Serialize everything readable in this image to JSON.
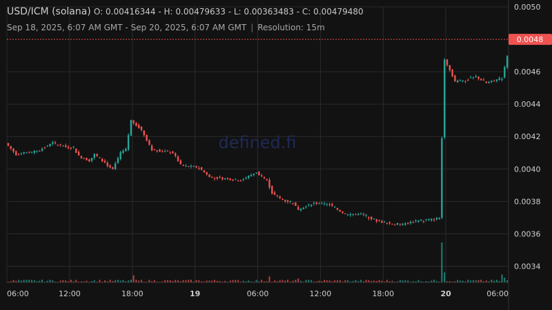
{
  "header": {
    "pair": "USD/ICM (solana)",
    "ohlc_text": "O: 0.00416344 - H: 0.00479633 - L: 0.00363483 - C: 0.00479480",
    "range_text": "Sep 18, 2025, 6:07 AM GMT - Sep 20, 2025, 6:07 AM GMT",
    "separator": "|",
    "resolution_text": "Resolution: 15m"
  },
  "watermark": "defined.fi",
  "colors": {
    "background": "#121212",
    "grid": "#2b2b2b",
    "up": "#26a69a",
    "down": "#ef5350",
    "price_line": "#ef5350",
    "axis_text": "#cfcfcf"
  },
  "chart_data": {
    "type": "candlestick",
    "resolution": "15m",
    "y_axis": {
      "min": 0.0033,
      "max": 0.005,
      "ticks": [
        0.0034,
        0.0036,
        0.0038,
        0.004,
        0.0042,
        0.0044,
        0.0046,
        0.005
      ],
      "tick_labels": [
        "0.0034",
        "0.0036",
        "0.0038",
        "0.0040",
        "0.0042",
        "0.0044",
        "0.0046",
        "0.0050"
      ]
    },
    "x_axis": {
      "start_hour": 6,
      "end_hour": 54,
      "ticks": [
        {
          "hour": 6,
          "label": "06:00",
          "bold": false
        },
        {
          "hour": 12,
          "label": "12:00",
          "bold": false
        },
        {
          "hour": 18,
          "label": "18:00",
          "bold": false
        },
        {
          "hour": 24,
          "label": "19",
          "bold": true
        },
        {
          "hour": 30,
          "label": "06:00",
          "bold": false
        },
        {
          "hour": 36,
          "label": "12:00",
          "bold": false
        },
        {
          "hour": 42,
          "label": "18:00",
          "bold": false
        },
        {
          "hour": 48,
          "label": "20",
          "bold": true
        },
        {
          "hour": 54,
          "label": "06:00",
          "bold": false
        }
      ]
    },
    "last_price": 0.0048,
    "last_price_label": "0.0048",
    "price_path": [
      [
        6.0,
        0.00416
      ],
      [
        7.0,
        0.00409
      ],
      [
        9.0,
        0.00411
      ],
      [
        10.5,
        0.00416
      ],
      [
        11.5,
        0.00414
      ],
      [
        12.5,
        0.00413
      ],
      [
        13.0,
        0.00408
      ],
      [
        14.0,
        0.00405
      ],
      [
        14.5,
        0.00409
      ],
      [
        15.5,
        0.00404
      ],
      [
        16.2,
        0.00399
      ],
      [
        17.0,
        0.0041
      ],
      [
        17.5,
        0.00412
      ],
      [
        18.0,
        0.0043
      ],
      [
        19.0,
        0.00424
      ],
      [
        20.0,
        0.00412
      ],
      [
        22.0,
        0.0041
      ],
      [
        22.8,
        0.00402
      ],
      [
        24.5,
        0.00401
      ],
      [
        25.5,
        0.00395
      ],
      [
        27.0,
        0.00394
      ],
      [
        28.5,
        0.00393
      ],
      [
        30.0,
        0.00398
      ],
      [
        31.0,
        0.00393
      ],
      [
        31.5,
        0.00385
      ],
      [
        32.5,
        0.00381
      ],
      [
        33.5,
        0.00379
      ],
      [
        34.0,
        0.00375
      ],
      [
        35.5,
        0.00379
      ],
      [
        37.0,
        0.00378
      ],
      [
        38.5,
        0.00372
      ],
      [
        40.0,
        0.00372
      ],
      [
        41.5,
        0.00368
      ],
      [
        43.0,
        0.00366
      ],
      [
        44.0,
        0.00366
      ],
      [
        45.5,
        0.00368
      ],
      [
        47.0,
        0.00369
      ],
      [
        47.5,
        0.0037
      ],
      [
        48.0,
        0.00468
      ],
      [
        49.0,
        0.00454
      ],
      [
        50.0,
        0.00455
      ],
      [
        51.0,
        0.00457
      ],
      [
        52.0,
        0.00453
      ],
      [
        53.5,
        0.00456
      ],
      [
        54.0,
        0.0047
      ],
      [
        54.5,
        0.0048
      ]
    ],
    "volume_spikes": [
      {
        "hour": 47.5,
        "size": 1.0
      },
      {
        "hour": 47.8,
        "size": 0.25
      },
      {
        "hour": 53.3,
        "size": 0.2
      },
      {
        "hour": 53.6,
        "size": 0.12
      },
      {
        "hour": 18.0,
        "size": 0.18
      },
      {
        "hour": 31.0,
        "size": 0.15
      },
      {
        "hour": 33.7,
        "size": 0.1
      }
    ]
  }
}
